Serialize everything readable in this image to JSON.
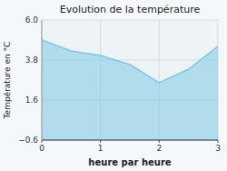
{
  "chart_data": {
    "type": "area",
    "title": "Evolution de la température",
    "xlabel": "heure par heure",
    "ylabel": "Température en °C",
    "x": [
      0,
      0.5,
      1,
      1.5,
      2,
      2.5,
      3
    ],
    "values": [
      4.9,
      4.3,
      4.05,
      3.55,
      2.55,
      3.3,
      4.55
    ],
    "color": "#7ec8e3",
    "xlim": [
      0,
      3
    ],
    "ylim": [
      -0.6,
      6.0
    ],
    "xticks": [
      0,
      1,
      2,
      3
    ],
    "yticks": [
      {
        "value": -0.6,
        "label": "−0.6"
      },
      1.6,
      3.8,
      {
        "value": 6.0,
        "label": "6.0"
      }
    ],
    "grid": true
  }
}
